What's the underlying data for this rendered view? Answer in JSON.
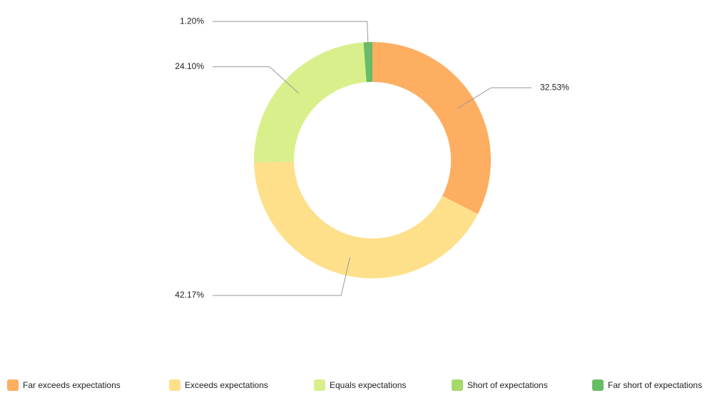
{
  "chart_data": {
    "type": "donut",
    "categories": [
      "Far exceeds expectations",
      "Exceeds expectations",
      "Equals expectations",
      "Short of expectations",
      "Far short of expectations"
    ],
    "values": [
      32.53,
      42.17,
      24.1,
      0,
      1.2
    ],
    "value_labels": [
      "32.53%",
      "42.17%",
      "24.10%",
      null,
      "1.20%"
    ],
    "colors": [
      "#fdae61",
      "#fee08b",
      "#d9ef8b",
      "#a6d96a",
      "#66bd63"
    ],
    "legend": "bottom"
  }
}
